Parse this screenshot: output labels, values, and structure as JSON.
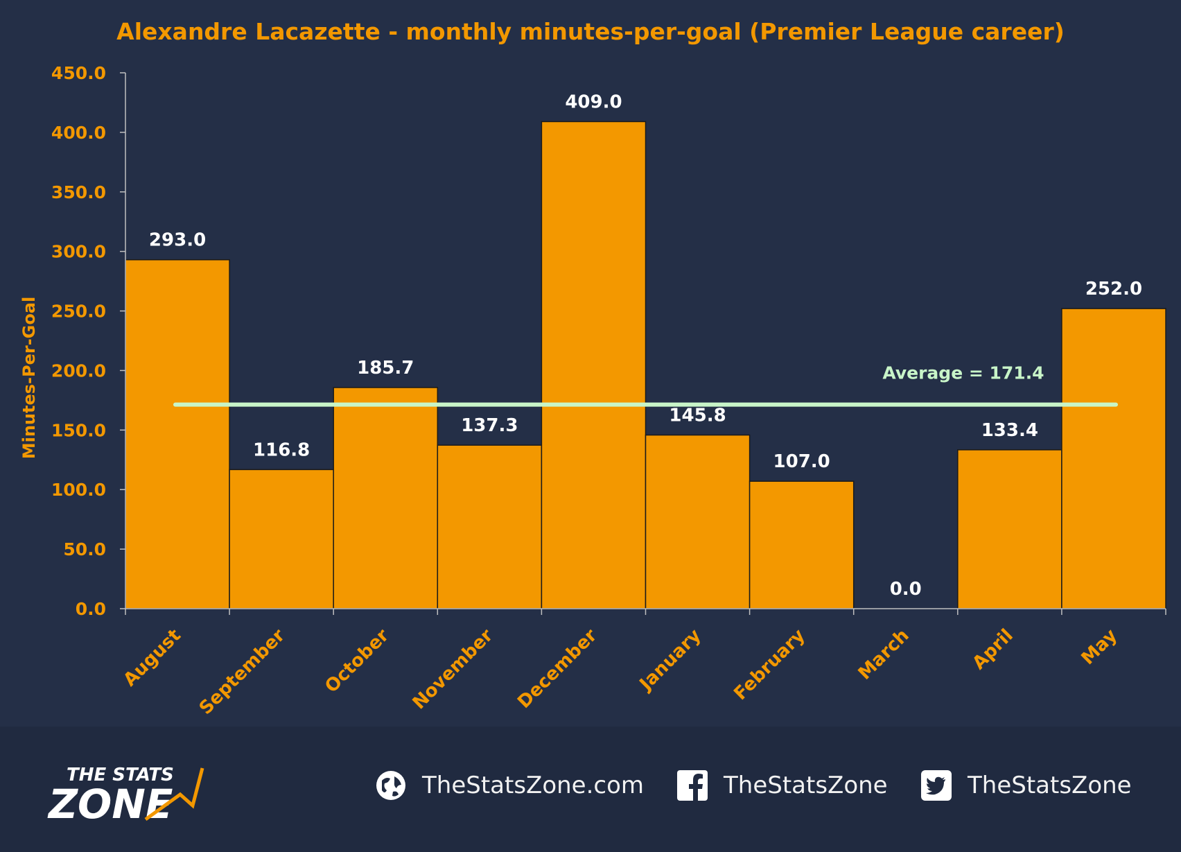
{
  "chart_data": {
    "type": "bar",
    "title": "Alexandre Lacazette - monthly minutes-per-goal (Premier League career)",
    "xlabel": "",
    "ylabel": "Minutes-Per-Goal",
    "categories": [
      "August",
      "September",
      "October",
      "November",
      "December",
      "January",
      "February",
      "March",
      "April",
      "May"
    ],
    "values": [
      293.0,
      116.8,
      185.7,
      137.3,
      409.0,
      145.8,
      107.0,
      0.0,
      133.4,
      252.0
    ],
    "value_labels": [
      "293.0",
      "116.8",
      "185.7",
      "137.3",
      "409.0",
      "145.8",
      "107.0",
      "0.0",
      "133.4",
      "252.0"
    ],
    "ylim": [
      0,
      450
    ],
    "yticks": [
      "0.0",
      "50.0",
      "100.0",
      "150.0",
      "200.0",
      "250.0",
      "300.0",
      "350.0",
      "400.0",
      "450.0"
    ],
    "average": 171.4,
    "average_label": "Average = 171.4",
    "grid": false,
    "colors": {
      "bar": "#f39800",
      "bar_edge": "#1a1a1a",
      "axis_text": "#f39800",
      "value_text": "#ffffff",
      "average_line": "#c8f5c8",
      "background": "#242f47"
    }
  },
  "footer": {
    "logo_line1": "THE STATS",
    "logo_line2": "ZONE",
    "website": "TheStatsZone.com",
    "facebook": "TheStatsZone",
    "twitter": "TheStatsZone",
    "icons": [
      "globe-icon",
      "facebook-icon",
      "twitter-icon"
    ]
  }
}
